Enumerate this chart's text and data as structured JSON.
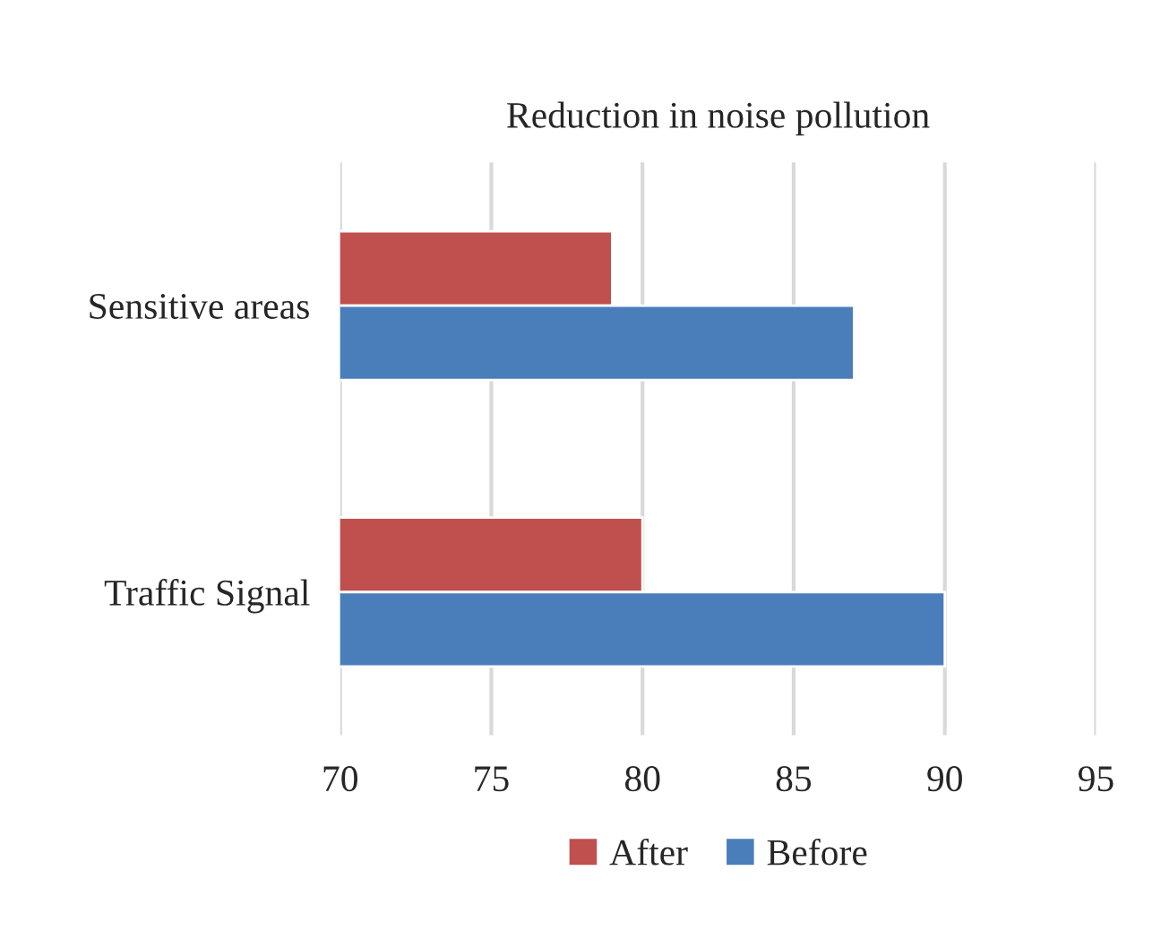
{
  "chart_data": {
    "type": "bar",
    "orientation": "horizontal",
    "title": "Reduction in noise pollution",
    "categories": [
      "Sensitive areas",
      "Traffic Signal"
    ],
    "series": [
      {
        "name": "After",
        "color": "#c0504d",
        "values": [
          79,
          80
        ]
      },
      {
        "name": "Before",
        "color": "#4a7ebb",
        "values": [
          87,
          90
        ]
      }
    ],
    "xlim": [
      70,
      95
    ],
    "xticks": [
      70,
      75,
      80,
      85,
      90,
      95
    ],
    "grid": "x",
    "legend": "bottom"
  }
}
